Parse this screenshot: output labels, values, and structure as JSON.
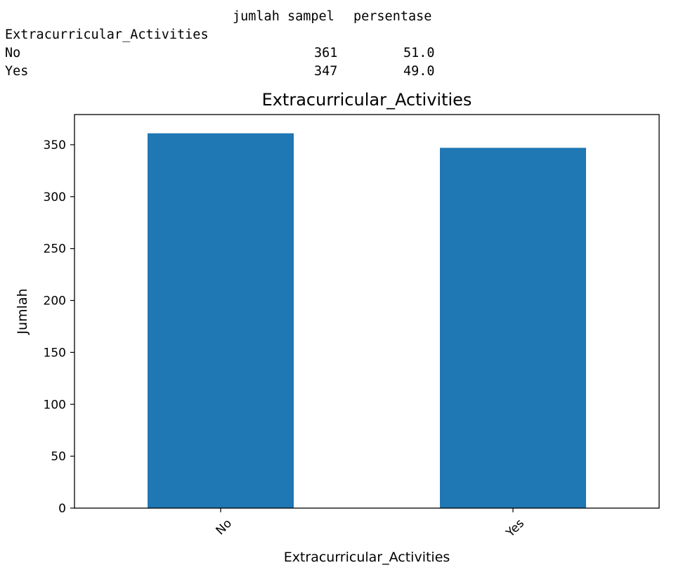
{
  "dataframe": {
    "columns": [
      "jumlah sampel",
      "persentase"
    ],
    "index_name": "Extracurricular_Activities",
    "rows": [
      {
        "label": "No",
        "jumlah_sampel": "361",
        "persentase": "51.0"
      },
      {
        "label": "Yes",
        "jumlah_sampel": "347",
        "persentase": "49.0"
      }
    ]
  },
  "chart_data": {
    "type": "bar",
    "title": "Extracurricular_Activities",
    "xlabel": "Extracurricular_Activities",
    "ylabel": "Jumlah",
    "categories": [
      "No",
      "Yes"
    ],
    "values": [
      361,
      347
    ],
    "ylim": [
      0,
      379.05
    ],
    "yticks": [
      0,
      50,
      100,
      150,
      200,
      250,
      300,
      350
    ],
    "xtick_rotation": 45,
    "grid": false,
    "bar_color": "#1f77b4"
  }
}
